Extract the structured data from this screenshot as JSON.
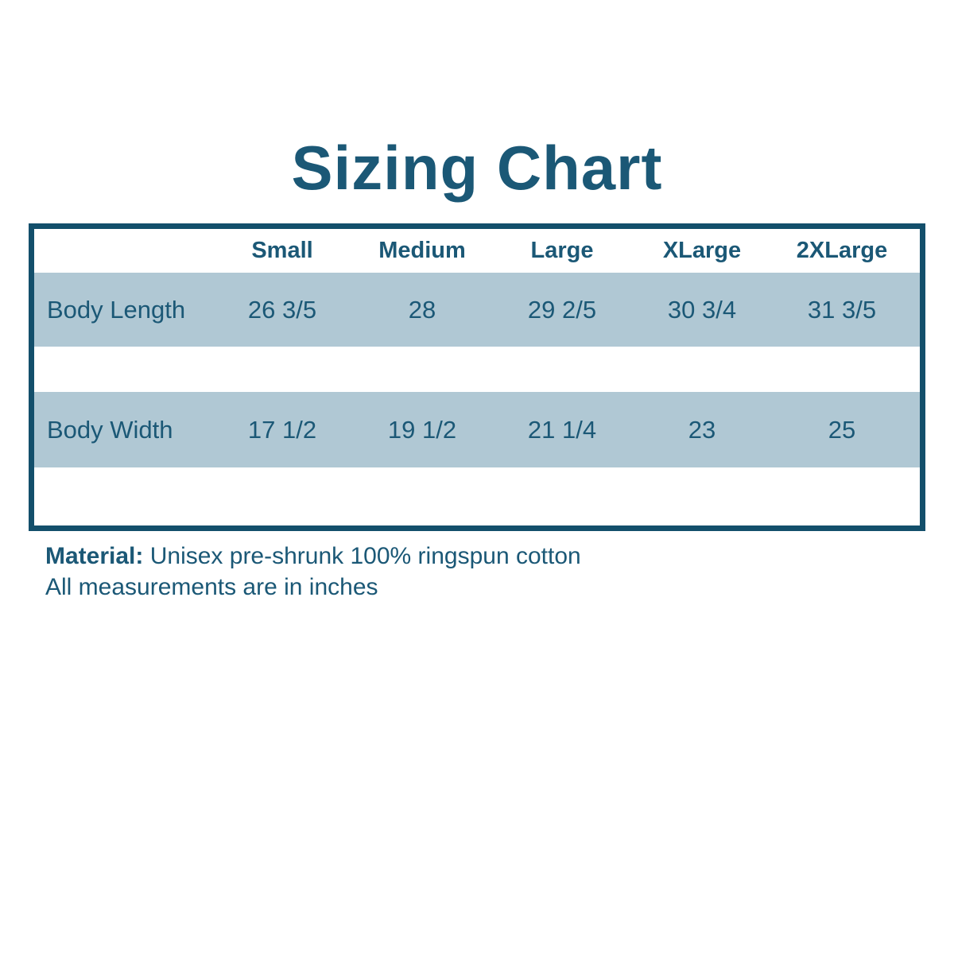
{
  "title": "Sizing Chart",
  "chart_data": {
    "type": "table",
    "title": "Sizing Chart",
    "columns": [
      "Small",
      "Medium",
      "Large",
      "XLarge",
      "2XLarge"
    ],
    "rows": [
      {
        "label": "Body Length",
        "values": [
          "26 3/5",
          "28",
          "29 2/5",
          "30 3/4",
          "31 3/5"
        ]
      },
      {
        "label": "Body Width",
        "values": [
          "17 1/2",
          "19 1/2",
          "21 1/4",
          "23",
          "25"
        ]
      }
    ],
    "units": "inches"
  },
  "footer": {
    "material_label": "Material:",
    "material_value": "Unisex pre-shrunk 100% ringspun cotton",
    "note": "All measurements are in inches"
  },
  "colors": {
    "text": "#1B5876",
    "table_border": "#134F6B",
    "row_stripe": "#B0C8D4",
    "background": "#FFFFFF"
  }
}
